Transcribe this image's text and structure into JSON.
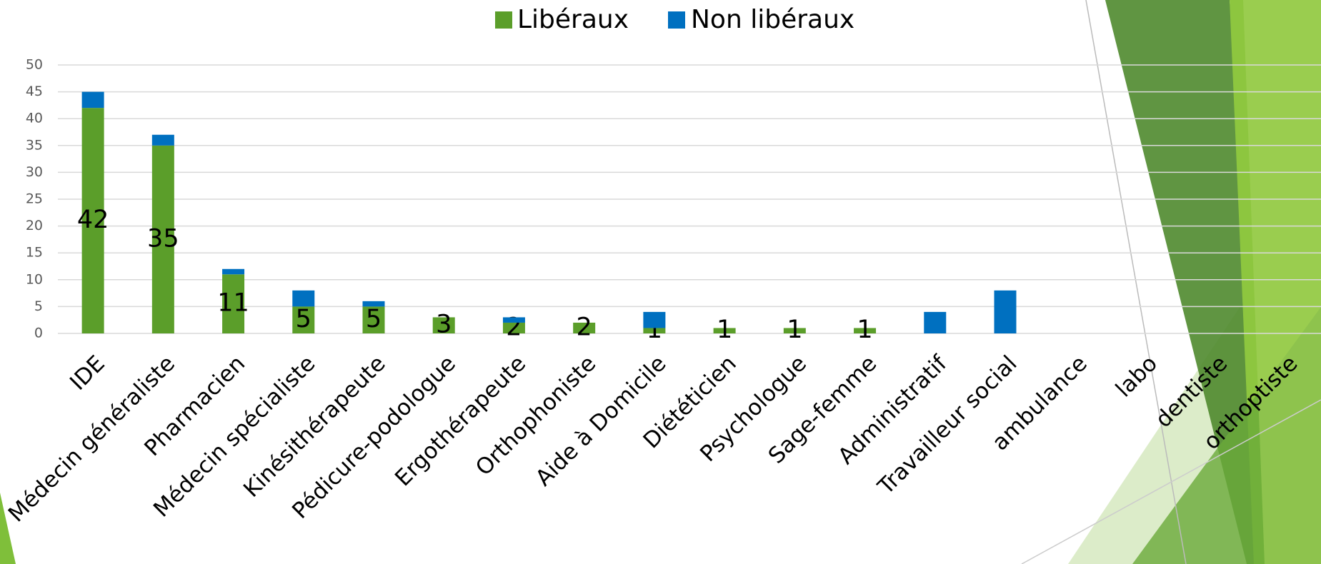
{
  "chart_data": {
    "type": "bar",
    "stacked": true,
    "categories": [
      "IDE",
      "Médecin généraliste",
      "Pharmacien",
      "Médecin spécialiste",
      "Kinésithérapeute",
      "Pédicure-podologue",
      "Ergothérapeute",
      "Orthophoniste",
      "Aide à Domicile",
      "Diététicien",
      "Psychologue",
      "Sage-femme",
      "Administratif",
      "Travailleur social",
      "ambulance",
      "labo",
      "dentiste",
      "orthoptiste"
    ],
    "series": [
      {
        "name": "Libéraux",
        "color": "#5b9e2a",
        "values": [
          42,
          35,
          11,
          5,
          5,
          3,
          2,
          2,
          1,
          1,
          1,
          1,
          null,
          null,
          null,
          null,
          null,
          null
        ]
      },
      {
        "name": "Non libéraux",
        "color": "#0070c0",
        "values": [
          3,
          2,
          1,
          3,
          1,
          null,
          1,
          null,
          3,
          null,
          null,
          null,
          4,
          8,
          null,
          null,
          null,
          null
        ]
      }
    ],
    "data_labels_series": "Libéraux",
    "ylim": [
      0,
      50
    ],
    "yticks": [
      0,
      5,
      10,
      15,
      20,
      25,
      30,
      35,
      40,
      45,
      50
    ],
    "grid": true,
    "legend": "top"
  }
}
